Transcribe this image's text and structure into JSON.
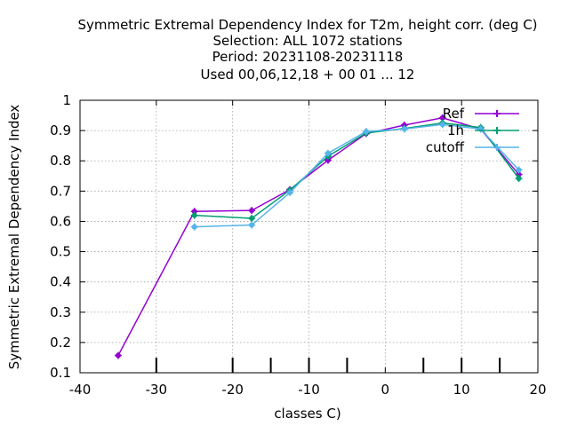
{
  "chart_data": {
    "type": "line",
    "title_lines": [
      "Symmetric Extremal Dependency Index  for T2m, height corr. (deg C)",
      "Selection: ALL   1072 stations",
      "Period: 20231108-20231118",
      "Used  00,06,12,18 + 00 01 ... 12"
    ],
    "xlabel": "classes C)",
    "ylabel": "Symmetric Extremal Dependency Index",
    "xlim": [
      -40,
      20
    ],
    "ylim": [
      0.1,
      1
    ],
    "xticks": [
      -40,
      -30,
      -20,
      -10,
      0,
      10,
      20
    ],
    "yticks": [
      0.1,
      0.2,
      0.3,
      0.4,
      0.5,
      0.6,
      0.7,
      0.8,
      0.9,
      1
    ],
    "x_minor_marks": [
      -30,
      -20,
      -15,
      -10,
      -5,
      5,
      10,
      15
    ],
    "grid": true,
    "legend_position": "top-right",
    "series": [
      {
        "name": "Ref",
        "color": "#9400d3",
        "marker": "plus",
        "points": [
          [
            -35,
            0.157
          ],
          [
            -25,
            0.633
          ],
          [
            -17.5,
            0.636
          ],
          [
            -12.5,
            0.705
          ],
          [
            -7.5,
            0.802
          ],
          [
            -2.5,
            0.89
          ],
          [
            2.5,
            0.918
          ],
          [
            7.5,
            0.942
          ],
          [
            12.5,
            0.905
          ],
          [
            17.5,
            0.755
          ]
        ]
      },
      {
        "name": "1h",
        "color": "#009e73",
        "marker": "plus",
        "points": [
          [
            -25,
            0.62
          ],
          [
            -17.5,
            0.61
          ],
          [
            -12.5,
            0.703
          ],
          [
            -7.5,
            0.815
          ],
          [
            -2.5,
            0.892
          ],
          [
            2.5,
            0.907
          ],
          [
            7.5,
            0.925
          ],
          [
            12.5,
            0.91
          ],
          [
            17.5,
            0.742
          ]
        ]
      },
      {
        "name": "cutoff",
        "color": "#56b4e9",
        "marker": "plus",
        "points": [
          [
            -25,
            0.582
          ],
          [
            -17.5,
            0.588
          ],
          [
            -12.5,
            0.695
          ],
          [
            -7.5,
            0.825
          ],
          [
            -2.5,
            0.897
          ],
          [
            2.5,
            0.905
          ],
          [
            7.5,
            0.92
          ],
          [
            12.5,
            0.905
          ],
          [
            17.5,
            0.77
          ]
        ]
      }
    ]
  }
}
